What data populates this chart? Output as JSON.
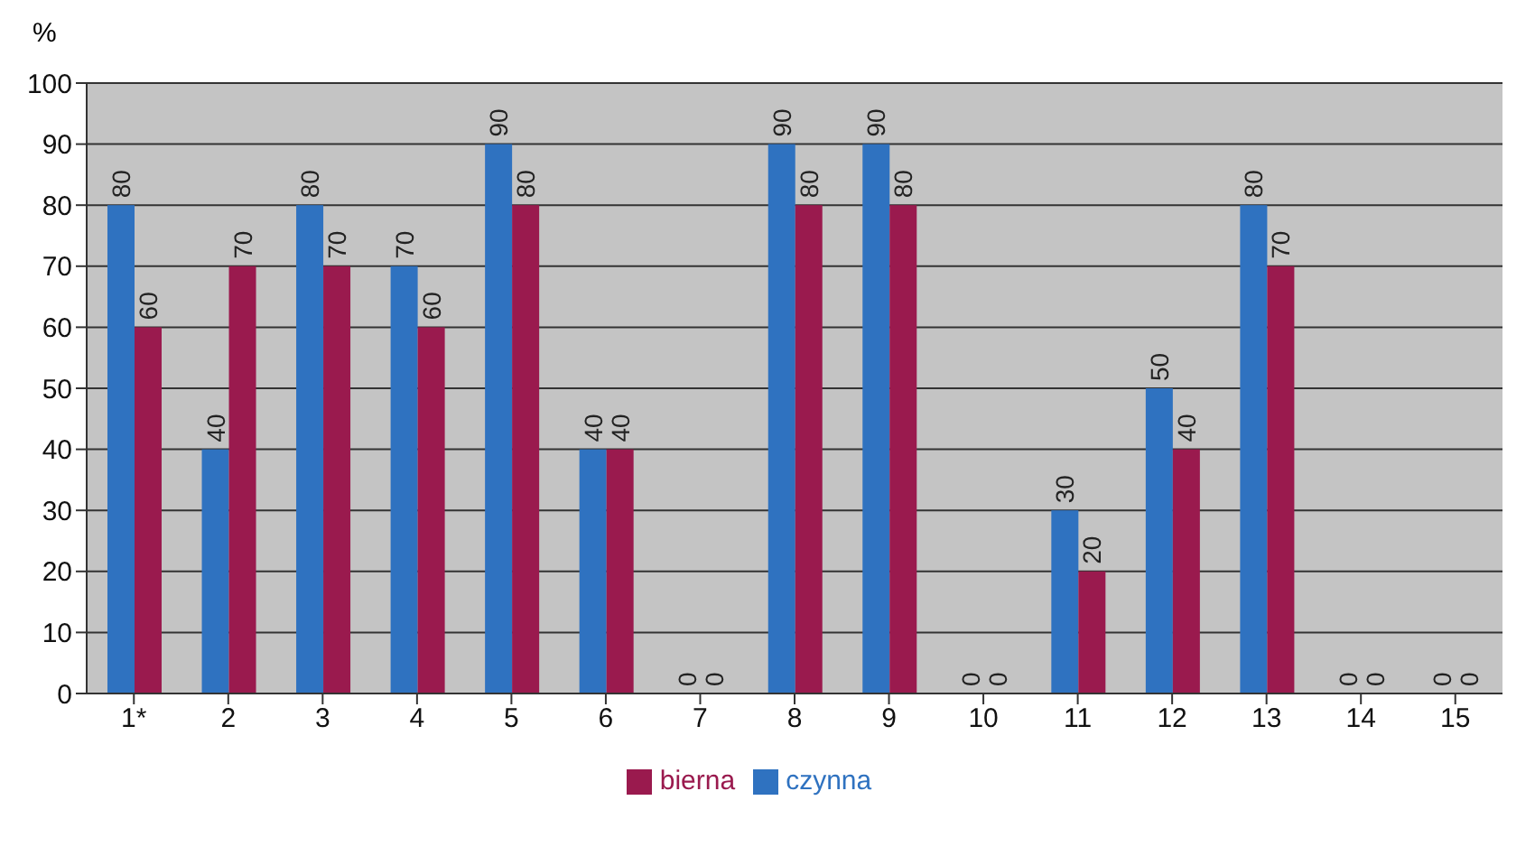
{
  "chart_data": {
    "type": "bar",
    "ylabel": "%",
    "categories": [
      "1*",
      "2",
      "3",
      "4",
      "5",
      "6",
      "7",
      "8",
      "9",
      "10",
      "11",
      "12",
      "13",
      "14",
      "15"
    ],
    "series": [
      {
        "name": "czynna",
        "color": "#2f72c0",
        "values": [
          80,
          40,
          80,
          70,
          90,
          40,
          0,
          90,
          90,
          0,
          30,
          50,
          80,
          0,
          0
        ]
      },
      {
        "name": "bierna",
        "color": "#9a1a4e",
        "values": [
          60,
          70,
          70,
          60,
          80,
          40,
          0,
          80,
          80,
          0,
          20,
          40,
          70,
          0,
          0
        ]
      }
    ],
    "ylim": [
      0,
      100
    ],
    "yticks": [
      0,
      10,
      20,
      30,
      40,
      50,
      60,
      70,
      80,
      90,
      100
    ],
    "grid": "y",
    "legend": "bottom",
    "data_labels": true
  }
}
